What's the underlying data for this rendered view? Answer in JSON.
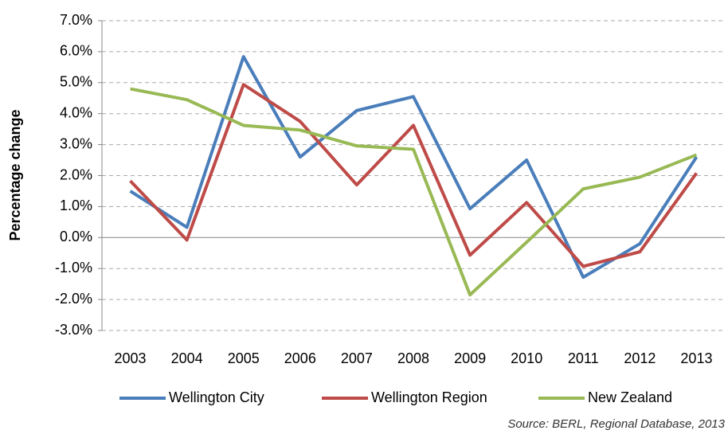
{
  "chart_data": {
    "type": "line",
    "y_label": "Percentage change",
    "source": "Source: BERL, Regional Database, 2013",
    "categories": [
      "2003",
      "2004",
      "2005",
      "2006",
      "2007",
      "2008",
      "2009",
      "2010",
      "2011",
      "2012",
      "2013"
    ],
    "series": [
      {
        "name": "Wellington City",
        "color": "#4a7ebb",
        "values": [
          1.5,
          0.33,
          5.84,
          2.6,
          4.1,
          4.55,
          0.93,
          2.5,
          -1.28,
          -0.2,
          2.6
        ]
      },
      {
        "name": "Wellington Region",
        "color": "#be4b48",
        "values": [
          1.83,
          -0.08,
          4.94,
          3.75,
          1.7,
          3.62,
          -0.57,
          1.13,
          -0.93,
          -0.46,
          2.08
        ]
      },
      {
        "name": "New Zealand",
        "color": "#98b954",
        "values": [
          4.8,
          4.45,
          3.62,
          3.47,
          2.96,
          2.85,
          -1.85,
          -0.15,
          1.57,
          1.95,
          2.67
        ]
      }
    ],
    "ylim": [
      -3,
      7
    ],
    "yticks": [
      {
        "value": -3,
        "label": "-3.0%"
      },
      {
        "value": -2,
        "label": "-2.0%"
      },
      {
        "value": -1,
        "label": "-1.0%"
      },
      {
        "value": 0,
        "label": "0.0%"
      },
      {
        "value": 1,
        "label": "1.0%"
      },
      {
        "value": 2,
        "label": "2.0%"
      },
      {
        "value": 3,
        "label": "3.0%"
      },
      {
        "value": 4,
        "label": "4.0%"
      },
      {
        "value": 5,
        "label": "5.0%"
      },
      {
        "value": 6,
        "label": "6.0%"
      },
      {
        "value": 7,
        "label": "7.0%"
      }
    ],
    "grid": true,
    "legend": "bottom"
  }
}
